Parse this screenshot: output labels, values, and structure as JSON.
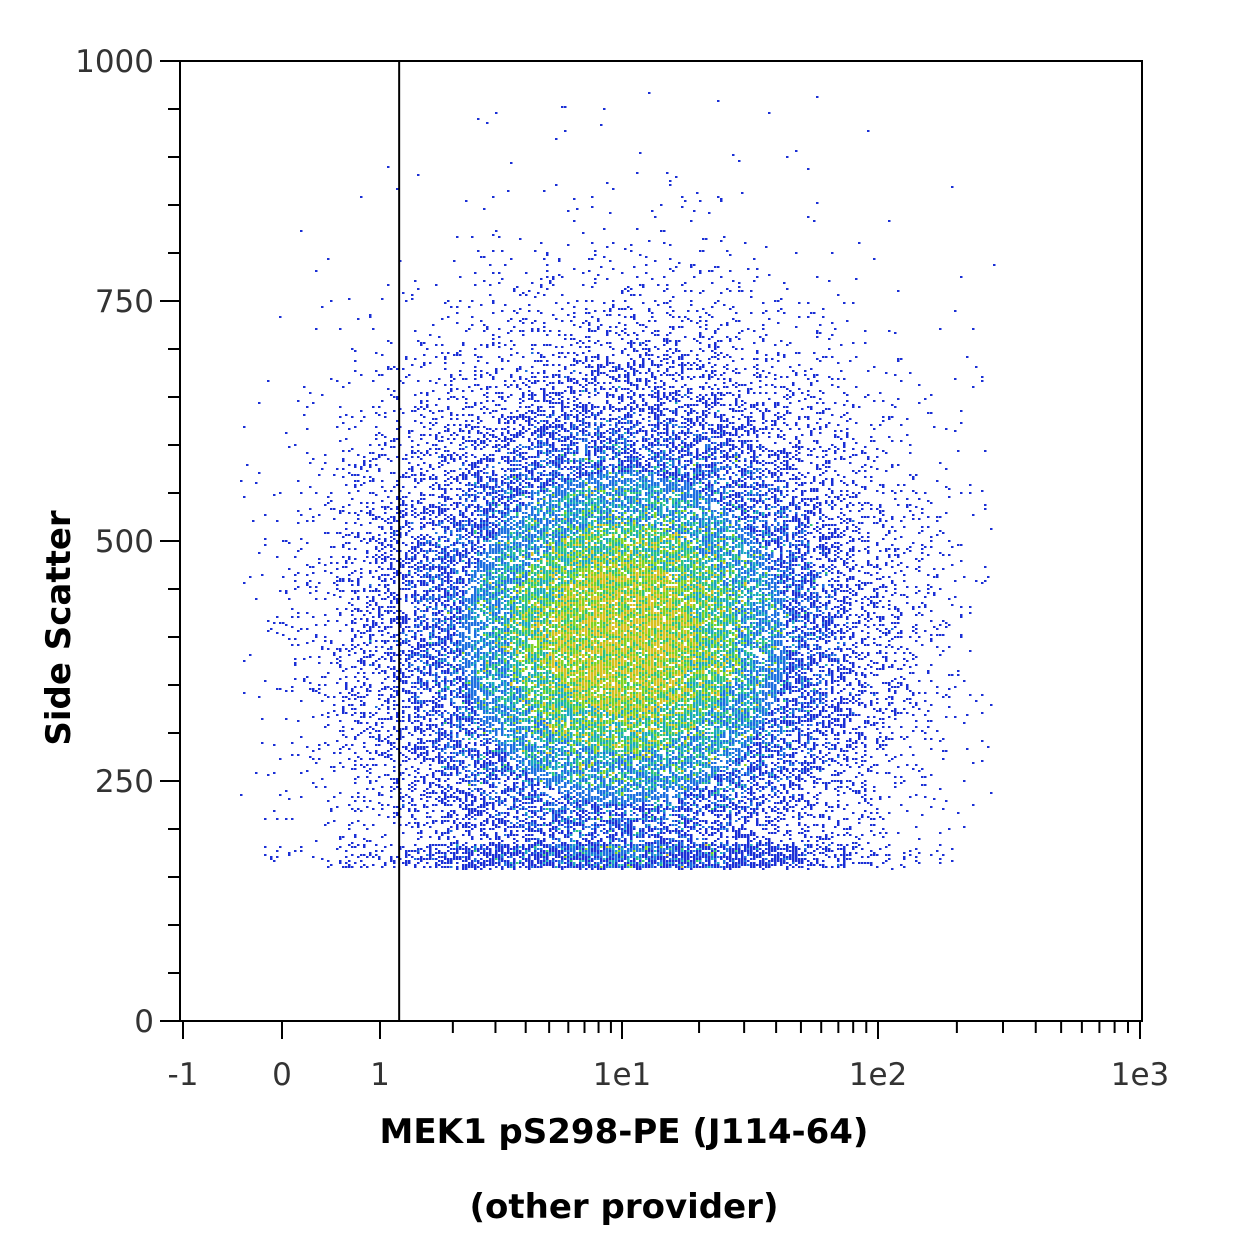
{
  "chart_data": {
    "type": "scatter",
    "title": "",
    "xlabel": "MEK1 pS298-PE (J114-64)",
    "xlabel_line2": "(other provider)",
    "ylabel": "Side Scatter",
    "x_scale": "biexponential",
    "xlim": [
      -1,
      1000
    ],
    "ylim": [
      0,
      1000
    ],
    "x_tick_labels": [
      "-1",
      "0",
      "1",
      "1e1",
      "1e2",
      "1e3"
    ],
    "y_tick_labels": [
      "0",
      "250",
      "500",
      "750",
      "1000"
    ],
    "y_tick_values": [
      0,
      250,
      500,
      750,
      1000
    ],
    "gate_x": 1.2,
    "grid": false,
    "legend": "none",
    "density_colors": [
      "#1a2fd6",
      "#1c6fe0",
      "#19a7c2",
      "#2cc47a",
      "#7ed321",
      "#d8c020"
    ],
    "population": {
      "center_x": 10,
      "center_ssc": 400,
      "ssc_min": 160,
      "ssc_max": 970
    },
    "series": [
      {
        "name": "",
        "note_points": "dense single population of events plotted as density dots"
      }
    ]
  }
}
